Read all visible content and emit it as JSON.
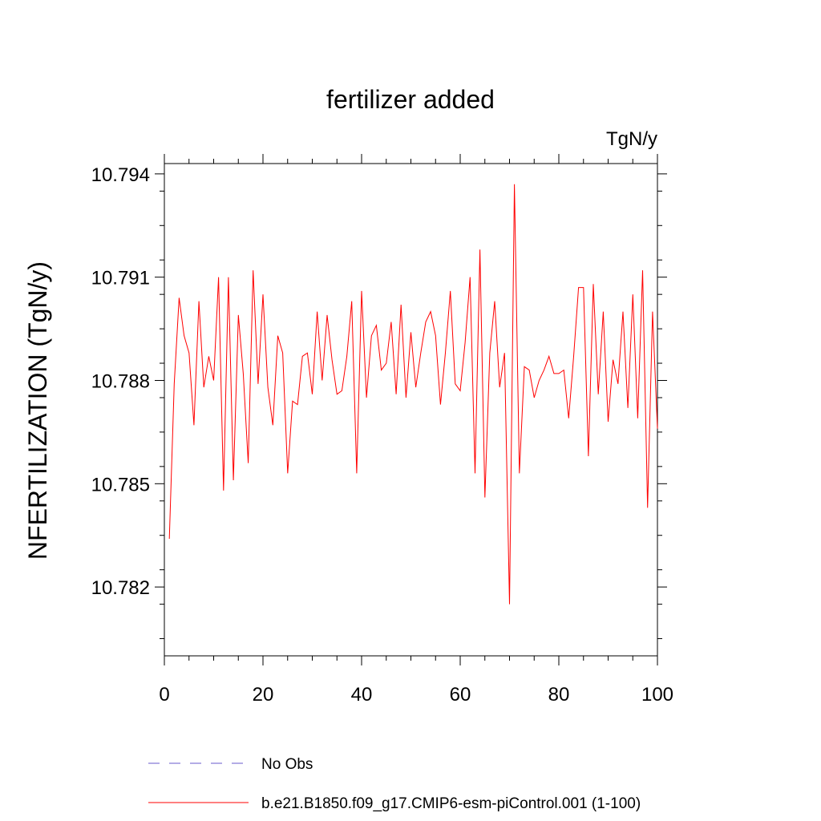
{
  "chart_data": {
    "type": "line",
    "title": "fertilizer added",
    "units": "TgN/y",
    "ylabel": "NFERTILIZATION  (TgN/y)",
    "xlabel": "",
    "xlim": [
      0,
      100
    ],
    "ylim": [
      10.78,
      10.7943
    ],
    "xticks": [
      0,
      20,
      40,
      60,
      80,
      100
    ],
    "xtick_labels": [
      "0",
      "20",
      "40",
      "60",
      "80",
      "100"
    ],
    "yticks": [
      10.782,
      10.785,
      10.788,
      10.791,
      10.794
    ],
    "ytick_labels": [
      "10.782",
      "10.785",
      "10.788",
      "10.791",
      "10.794"
    ],
    "grid": false,
    "legend_position": "bottom",
    "colors": {
      "series": "#ff0000",
      "obs": "#6a5acd",
      "axis": "#000000"
    },
    "series": [
      {
        "name": "b.e21.B1850.f09_g17.CMIP6-esm-piControl.001 (1-100)",
        "color": "#ff0000",
        "x": [
          1,
          2,
          3,
          4,
          5,
          6,
          7,
          8,
          9,
          10,
          11,
          12,
          13,
          14,
          15,
          16,
          17,
          18,
          19,
          20,
          21,
          22,
          23,
          24,
          25,
          26,
          27,
          28,
          29,
          30,
          31,
          32,
          33,
          34,
          35,
          36,
          37,
          38,
          39,
          40,
          41,
          42,
          43,
          44,
          45,
          46,
          47,
          48,
          49,
          50,
          51,
          52,
          53,
          54,
          55,
          56,
          57,
          58,
          59,
          60,
          61,
          62,
          63,
          64,
          65,
          66,
          67,
          68,
          69,
          70,
          71,
          72,
          73,
          74,
          75,
          76,
          77,
          78,
          79,
          80,
          81,
          82,
          83,
          84,
          85,
          86,
          87,
          88,
          89,
          90,
          91,
          92,
          93,
          94,
          95,
          96,
          97,
          98,
          99,
          100
        ],
        "values": [
          10.7834,
          10.7879,
          10.7904,
          10.7893,
          10.7888,
          10.7867,
          10.7903,
          10.7878,
          10.7887,
          10.788,
          10.791,
          10.7848,
          10.791,
          10.7851,
          10.7899,
          10.7882,
          10.7856,
          10.7912,
          10.7879,
          10.7905,
          10.7878,
          10.7867,
          10.7893,
          10.7888,
          10.7853,
          10.7874,
          10.7873,
          10.7887,
          10.7888,
          10.7876,
          10.79,
          10.788,
          10.7899,
          10.7886,
          10.7876,
          10.7877,
          10.7887,
          10.7903,
          10.7853,
          10.7906,
          10.7875,
          10.7893,
          10.7896,
          10.7883,
          10.7885,
          10.7897,
          10.7876,
          10.7902,
          10.7875,
          10.7894,
          10.7878,
          10.7888,
          10.7897,
          10.79,
          10.7893,
          10.7873,
          10.7888,
          10.7906,
          10.7879,
          10.7877,
          10.7891,
          10.791,
          10.7853,
          10.7918,
          10.7846,
          10.7888,
          10.7903,
          10.7878,
          10.7888,
          10.7815,
          10.7937,
          10.7853,
          10.7884,
          10.7883,
          10.7875,
          10.788,
          10.7883,
          10.7887,
          10.7882,
          10.7882,
          10.7883,
          10.7869,
          10.7887,
          10.7907,
          10.7907,
          10.7858,
          10.7908,
          10.7876,
          10.79,
          10.7868,
          10.7886,
          10.7879,
          10.79,
          10.7872,
          10.7905,
          10.7869,
          10.7912,
          10.7843,
          10.79,
          10.7866
        ]
      },
      {
        "name": "No Obs",
        "color": "#6a5acd",
        "values": []
      }
    ]
  }
}
